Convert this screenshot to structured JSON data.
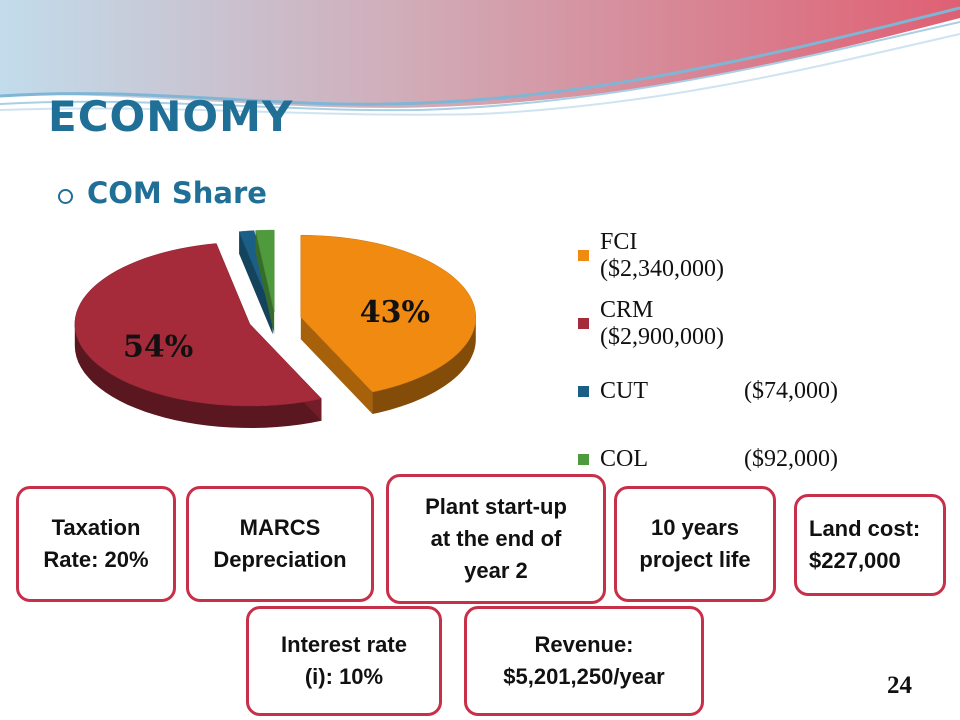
{
  "slide": {
    "title": "ECONOMY",
    "subtitle": "COM Share",
    "page_number": "24"
  },
  "colors": {
    "title": "#1f6f97",
    "card_border": "#c8304a"
  },
  "chart_data": {
    "type": "pie",
    "title": "",
    "categories": [
      "FCI ($2,340,000)",
      "CRM ($2,900,000)",
      "CUT",
      "COL"
    ],
    "legend": [
      {
        "name": "FCI ($2,340,000)",
        "value": "",
        "color": "#f08a10"
      },
      {
        "name": "CRM ($2,900,000)",
        "value": "",
        "color": "#a52a3a"
      },
      {
        "name": "CUT",
        "value": "($74,000)",
        "color": "#1c5f86"
      },
      {
        "name": "COL",
        "value": "($92,000)",
        "color": "#4f9a3c"
      }
    ],
    "values": [
      2340000,
      2900000,
      74000,
      92000
    ],
    "data_labels": [
      "43%",
      "54%",
      "",
      ""
    ],
    "legend_position": "right",
    "exploded": true,
    "three_d": true
  },
  "cards": [
    {
      "name": "taxation-card",
      "text": "Taxation\nRate: 20%"
    },
    {
      "name": "marcs-card",
      "text": "MARCS\nDepreciation"
    },
    {
      "name": "plant-startup-card",
      "text": "Plant start-up\nat the end of\nyear 2"
    },
    {
      "name": "project-life-card",
      "text": "10 years\nproject life"
    },
    {
      "name": "land-cost-card",
      "text": "Land cost:\n$227,000"
    },
    {
      "name": "interest-rate-card",
      "text": "Interest rate\n(i): 10%"
    },
    {
      "name": "revenue-card",
      "text": "Revenue:\n$5,201,250/year"
    }
  ]
}
